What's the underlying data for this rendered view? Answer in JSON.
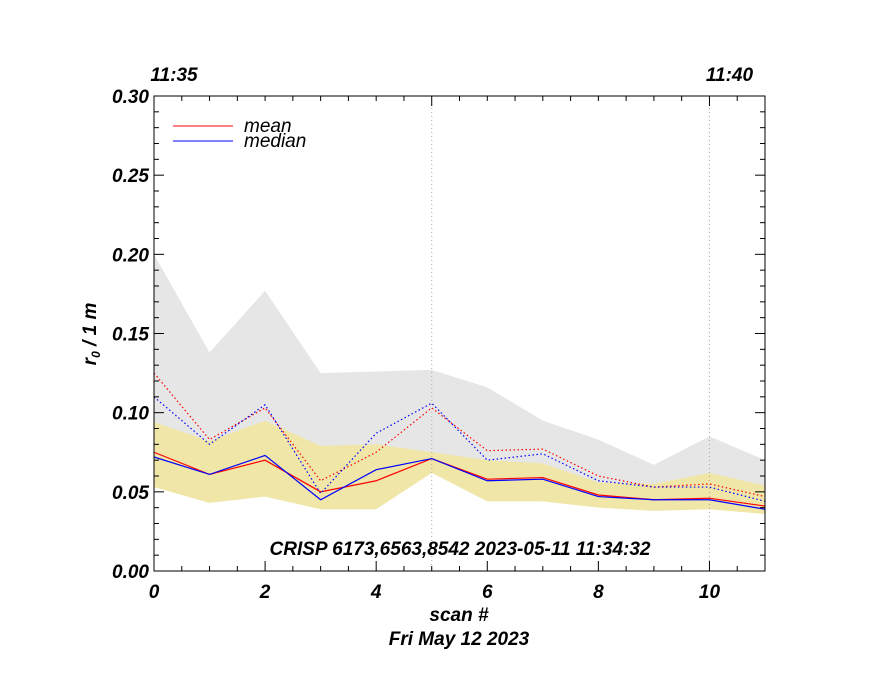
{
  "chart_data": {
    "type": "line",
    "xlabel": "scan #",
    "ylabel": "r",
    "ylabel_sub": "0",
    "ylabel_suffix": " / 1 m",
    "footer_date": "Fri May 12 2023",
    "annotation": "CRISP 6173,6563,8542 2023-05-11 11:34:32",
    "xlim": [
      0,
      11
    ],
    "ylim": [
      0,
      0.3
    ],
    "x_ticks": [
      "0",
      "2",
      "4",
      "6",
      "8",
      "10"
    ],
    "x_tick_values": [
      0,
      2,
      4,
      6,
      8,
      10
    ],
    "y_ticks": [
      "0.00",
      "0.05",
      "0.10",
      "0.15",
      "0.20",
      "0.25",
      "0.30"
    ],
    "y_tick_values": [
      0,
      0.05,
      0.1,
      0.15,
      0.2,
      0.25,
      0.3
    ],
    "top_time_ticks": [
      {
        "label": "11:35",
        "x": 0
      },
      {
        "label": "11:40",
        "x": 10
      }
    ],
    "vertical_gridlines_x": [
      5,
      10
    ],
    "x": [
      0,
      1,
      2,
      3,
      4,
      5,
      6,
      7,
      8,
      9,
      10,
      11
    ],
    "gray_band": {
      "color": "#e6e6e6",
      "lower": [
        0.055,
        0.045,
        0.05,
        0.045,
        0.045,
        0.07,
        0.05,
        0.048,
        0.045,
        0.042,
        0.042,
        0.038
      ],
      "upper": [
        0.2,
        0.138,
        0.177,
        0.125,
        0.126,
        0.127,
        0.116,
        0.095,
        0.083,
        0.067,
        0.085,
        0.07
      ]
    },
    "yellow_band": {
      "color": "#efe6a8",
      "lower": [
        0.053,
        0.043,
        0.047,
        0.039,
        0.039,
        0.062,
        0.044,
        0.044,
        0.04,
        0.038,
        0.039,
        0.036
      ],
      "upper": [
        0.094,
        0.082,
        0.095,
        0.079,
        0.08,
        0.075,
        0.07,
        0.068,
        0.056,
        0.055,
        0.062,
        0.054
      ]
    },
    "series": [
      {
        "name": "mean",
        "color": "#ff0000",
        "style": "solid",
        "values": [
          0.075,
          0.061,
          0.07,
          0.05,
          0.057,
          0.071,
          0.058,
          0.059,
          0.048,
          0.045,
          0.046,
          0.041
        ]
      },
      {
        "name": "median",
        "color": "#0000ff",
        "style": "solid",
        "values": [
          0.072,
          0.061,
          0.073,
          0.045,
          0.064,
          0.071,
          0.057,
          0.058,
          0.047,
          0.045,
          0.045,
          0.039
        ]
      },
      {
        "name": "",
        "color": "#ff0000",
        "style": "dotted",
        "values": [
          0.125,
          0.083,
          0.103,
          0.057,
          0.075,
          0.103,
          0.076,
          0.077,
          0.06,
          0.053,
          0.055,
          0.047
        ]
      },
      {
        "name": "",
        "color": "#0000ff",
        "style": "dotted",
        "values": [
          0.11,
          0.08,
          0.105,
          0.049,
          0.087,
          0.106,
          0.07,
          0.074,
          0.057,
          0.053,
          0.053,
          0.044
        ]
      }
    ],
    "legend": [
      {
        "label": "mean",
        "color": "#ff0000"
      },
      {
        "label": "median",
        "color": "#0000ff"
      }
    ],
    "legend_position": "top-left"
  }
}
